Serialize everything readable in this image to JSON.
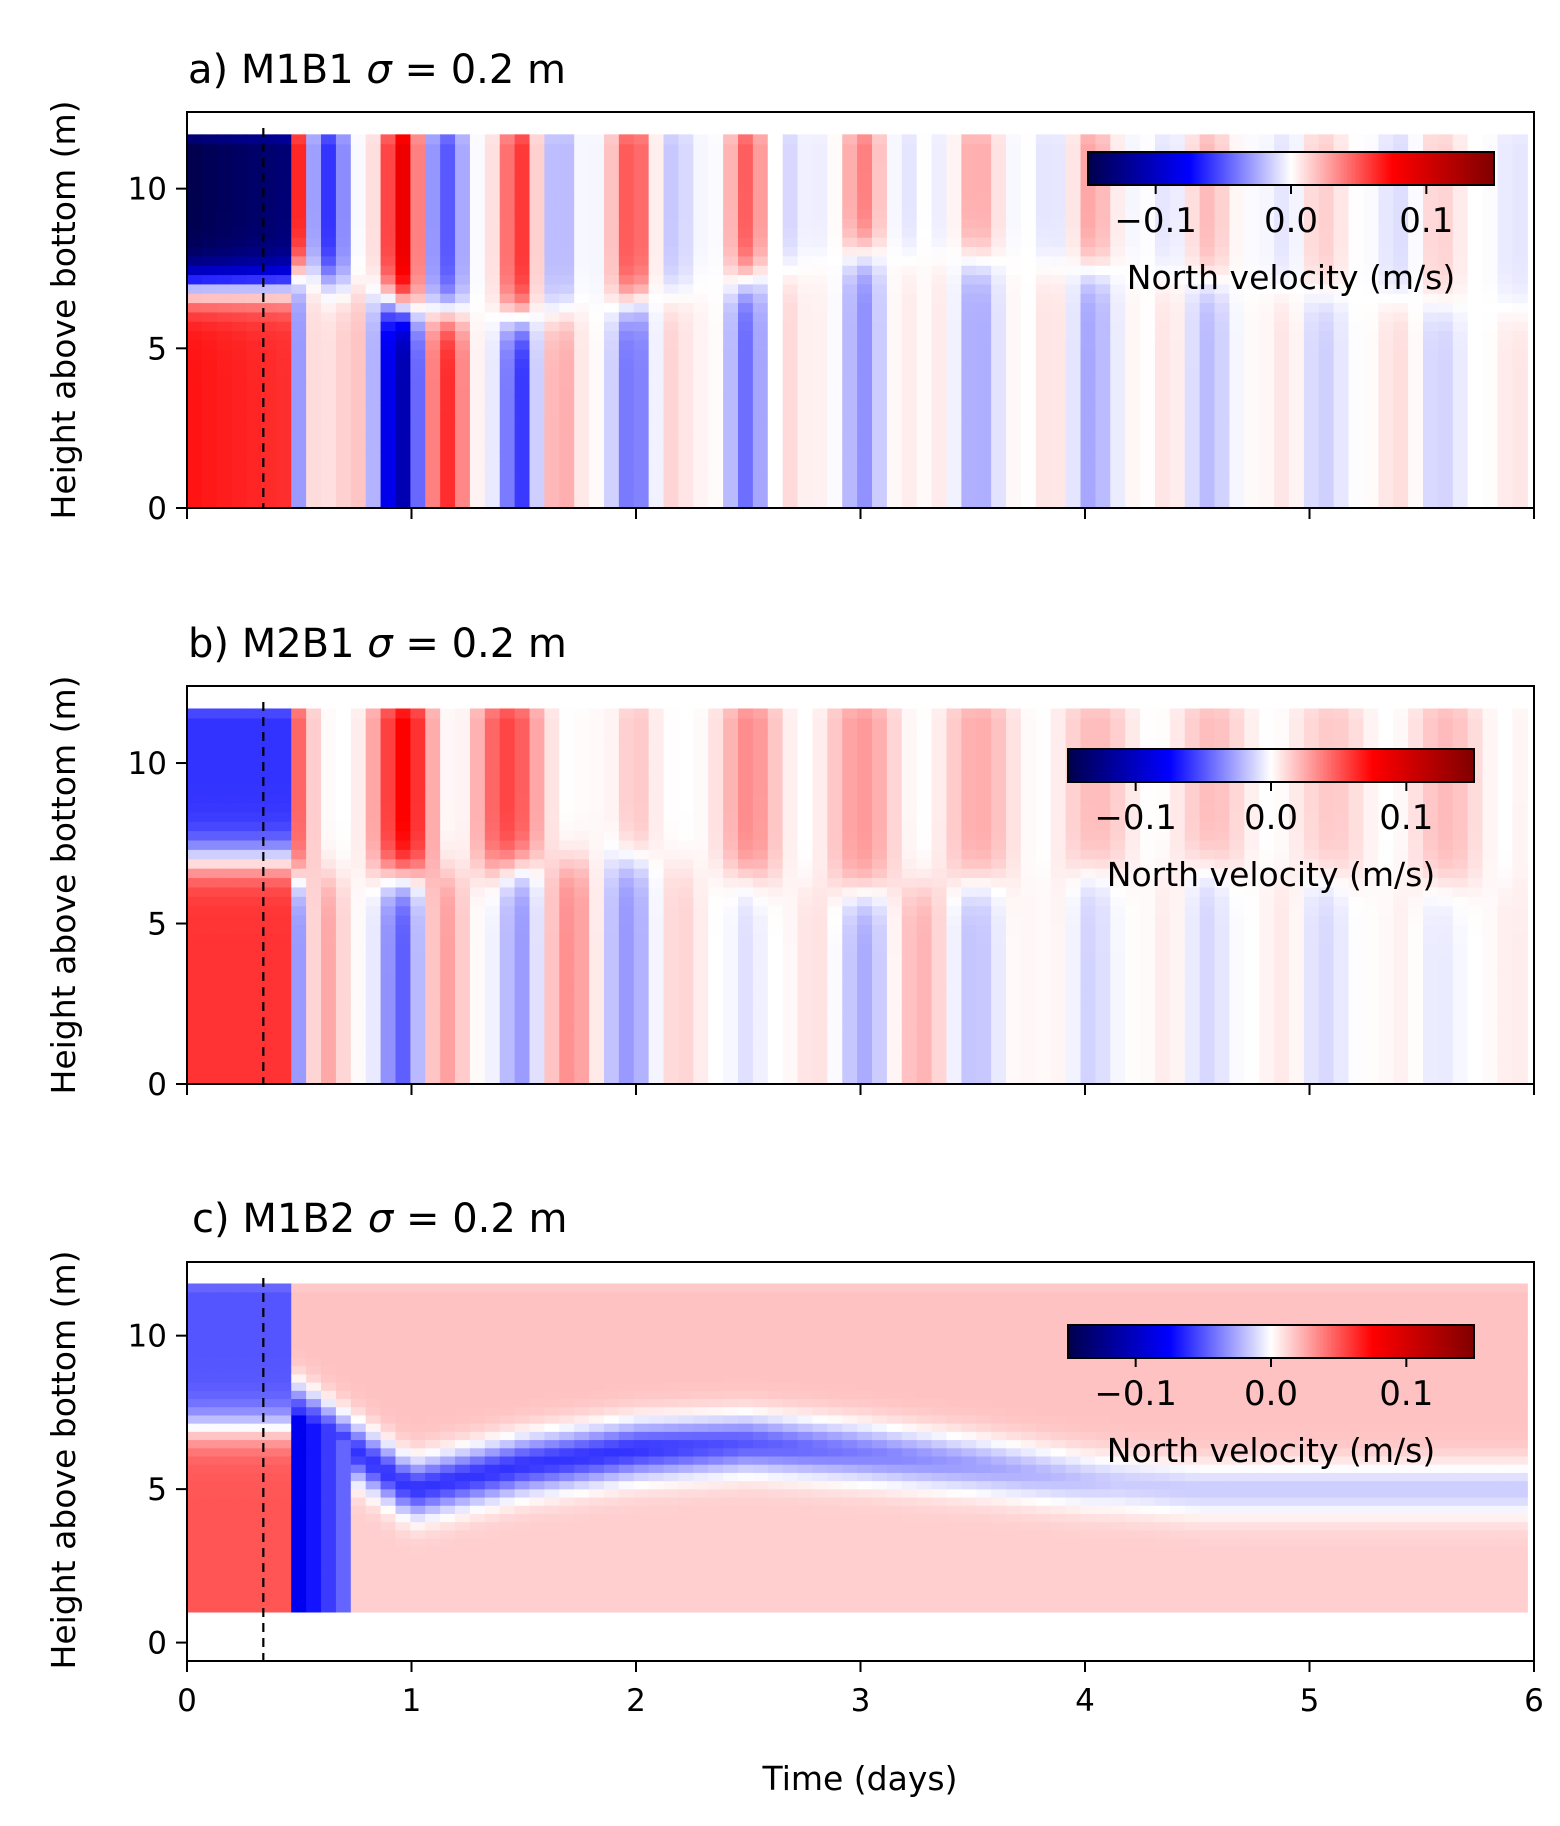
{
  "figure": {
    "xlabel": "Time (days)",
    "ylabel": "Height above bottom (m)",
    "colormap": {
      "name": "seismic",
      "stops": [
        "#00004c",
        "#0000ff",
        "#ffffff",
        "#ff0000",
        "#800000"
      ]
    }
  },
  "chart_data": [
    {
      "type": "heatmap",
      "panel_label": "a)",
      "title": "a) M1B1 σ = 0.2 m",
      "title_parts": {
        "prefix": "a) M1B1 ",
        "symbol": "σ",
        "suffix": " = 0.2 m"
      },
      "xlabel": "",
      "ylabel": "Height above bottom (m)",
      "xlim": [
        0,
        6
      ],
      "ylim": [
        0,
        12.4
      ],
      "xticks": [
        0,
        1,
        2,
        3,
        4,
        5,
        6
      ],
      "xtick_labels_visible": false,
      "yticks": [
        0,
        5,
        10
      ],
      "ytick_labels": [
        "0",
        "5",
        "10"
      ],
      "data_z_range": [
        0,
        11.7
      ],
      "time_range": [
        0,
        5.97
      ],
      "dashed_vline_x": 0.34,
      "colorbar": {
        "label": "North velocity (m/s)",
        "vmin": -0.15,
        "vmax": 0.15,
        "ticks": [
          -0.1,
          0.0,
          0.1
        ],
        "tick_labels": [
          "−0.1",
          "0.0",
          "0.1"
        ],
        "placement": "upper-right"
      },
      "shear_layer_z": [
        0,
        7.5,
        6.2,
        6.0,
        6.5,
        7.2,
        8.0,
        7.8,
        7.5,
        7.2,
        6.8,
        6.5,
        6.2
      ],
      "upper_amplitude": [
        -0.15,
        -0.13,
        0.11,
        -0.07,
        0.06,
        -0.05,
        0.04,
        -0.03,
        0.03,
        -0.025,
        0.02,
        -0.02,
        0.015
      ],
      "lower_amplitude": [
        0.07,
        0.06,
        -0.13,
        0.07,
        -0.05,
        0.045,
        -0.035,
        0.03,
        -0.03,
        0.025,
        -0.02,
        0.02,
        -0.015
      ],
      "lower_offset": 0.0
    },
    {
      "type": "heatmap",
      "panel_label": "b)",
      "title": "b) M2B1 σ = 0.2 m",
      "title_parts": {
        "prefix": "b) M2B1 ",
        "symbol": "σ",
        "suffix": " = 0.2 m"
      },
      "xlabel": "",
      "ylabel": "Height above bottom (m)",
      "xlim": [
        0,
        6
      ],
      "ylim": [
        0,
        12.4
      ],
      "xticks": [
        0,
        1,
        2,
        3,
        4,
        5,
        6
      ],
      "xtick_labels_visible": false,
      "yticks": [
        0,
        5,
        10
      ],
      "ytick_labels": [
        "0",
        "5",
        "10"
      ],
      "data_z_range": [
        0,
        11.7
      ],
      "time_range": [
        0,
        5.97
      ],
      "dashed_vline_x": 0.34,
      "colorbar": {
        "label": "North velocity (m/s)",
        "vmin": -0.15,
        "vmax": 0.15,
        "ticks": [
          -0.1,
          0.0,
          0.1
        ],
        "tick_labels": [
          "−0.1",
          "0.0",
          "0.1"
        ],
        "placement": "upper-right"
      },
      "shear_layer_z": [
        0,
        6.5,
        6.5,
        6.8,
        7.0,
        6.5,
        6.0,
        6.3,
        6.6,
        6.8,
        6.5,
        6.3,
        6.2
      ],
      "upper_amplitude": [
        -0.06,
        -0.06,
        0.09,
        0.05,
        -0.02,
        0.035,
        0.03,
        0.025,
        0.02,
        0.02,
        0.015,
        0.02,
        0.02
      ],
      "lower_amplitude": [
        0.06,
        0.06,
        -0.06,
        0.035,
        0.03,
        -0.01,
        0.025,
        0.02,
        -0.015,
        0.015,
        -0.015,
        0.01,
        -0.01
      ],
      "lower_offset": 0.0
    },
    {
      "type": "heatmap",
      "panel_label": "c)",
      "title": "c) M1B2 σ = 0.2 m",
      "title_parts": {
        "prefix": "c) M1B2 ",
        "symbol": "σ",
        "suffix": " = 0.2 m"
      },
      "xlabel": "Time (days)",
      "ylabel": "Height above bottom (m)",
      "xlim": [
        0,
        6
      ],
      "ylim": [
        -0.6,
        12.4
      ],
      "xticks": [
        0,
        1,
        2,
        3,
        4,
        5,
        6
      ],
      "xtick_labels_visible": true,
      "xtick_labels": [
        "0",
        "1",
        "2",
        "3",
        "4",
        "5",
        "6"
      ],
      "yticks": [
        0,
        5,
        10
      ],
      "ytick_labels": [
        "0",
        "5",
        "10"
      ],
      "data_z_range": [
        1.0,
        11.7
      ],
      "time_range": [
        0,
        5.97
      ],
      "dashed_vline_x": 0.34,
      "colorbar": {
        "label": "North velocity (m/s)",
        "vmin": -0.15,
        "vmax": 0.15,
        "ticks": [
          -0.1,
          0.0,
          0.1
        ],
        "tick_labels": [
          "−0.1",
          "0.0",
          "0.1"
        ],
        "placement": "upper-right"
      },
      "shear_layer_z": [
        0,
        7.5,
        5.0,
        5.8,
        6.3,
        6.5,
        6.2,
        5.8,
        5.3,
        5.0,
        5.0,
        5.0,
        5.0
      ],
      "upper_amplitude": [
        -0.05,
        -0.05,
        0.03,
        0.025,
        0.02,
        0.02,
        0.015,
        0.015,
        0.01,
        0.01,
        0.01,
        0.01,
        0.01
      ],
      "lower_amplitude": [
        0.05,
        0.05,
        -0.08,
        0.02,
        0.02,
        -0.01,
        -0.015,
        0.01,
        0.01,
        0.01,
        0.01,
        0.01,
        0.01
      ],
      "band_amplitude": -0.06,
      "lower_offset": 0.0
    }
  ]
}
